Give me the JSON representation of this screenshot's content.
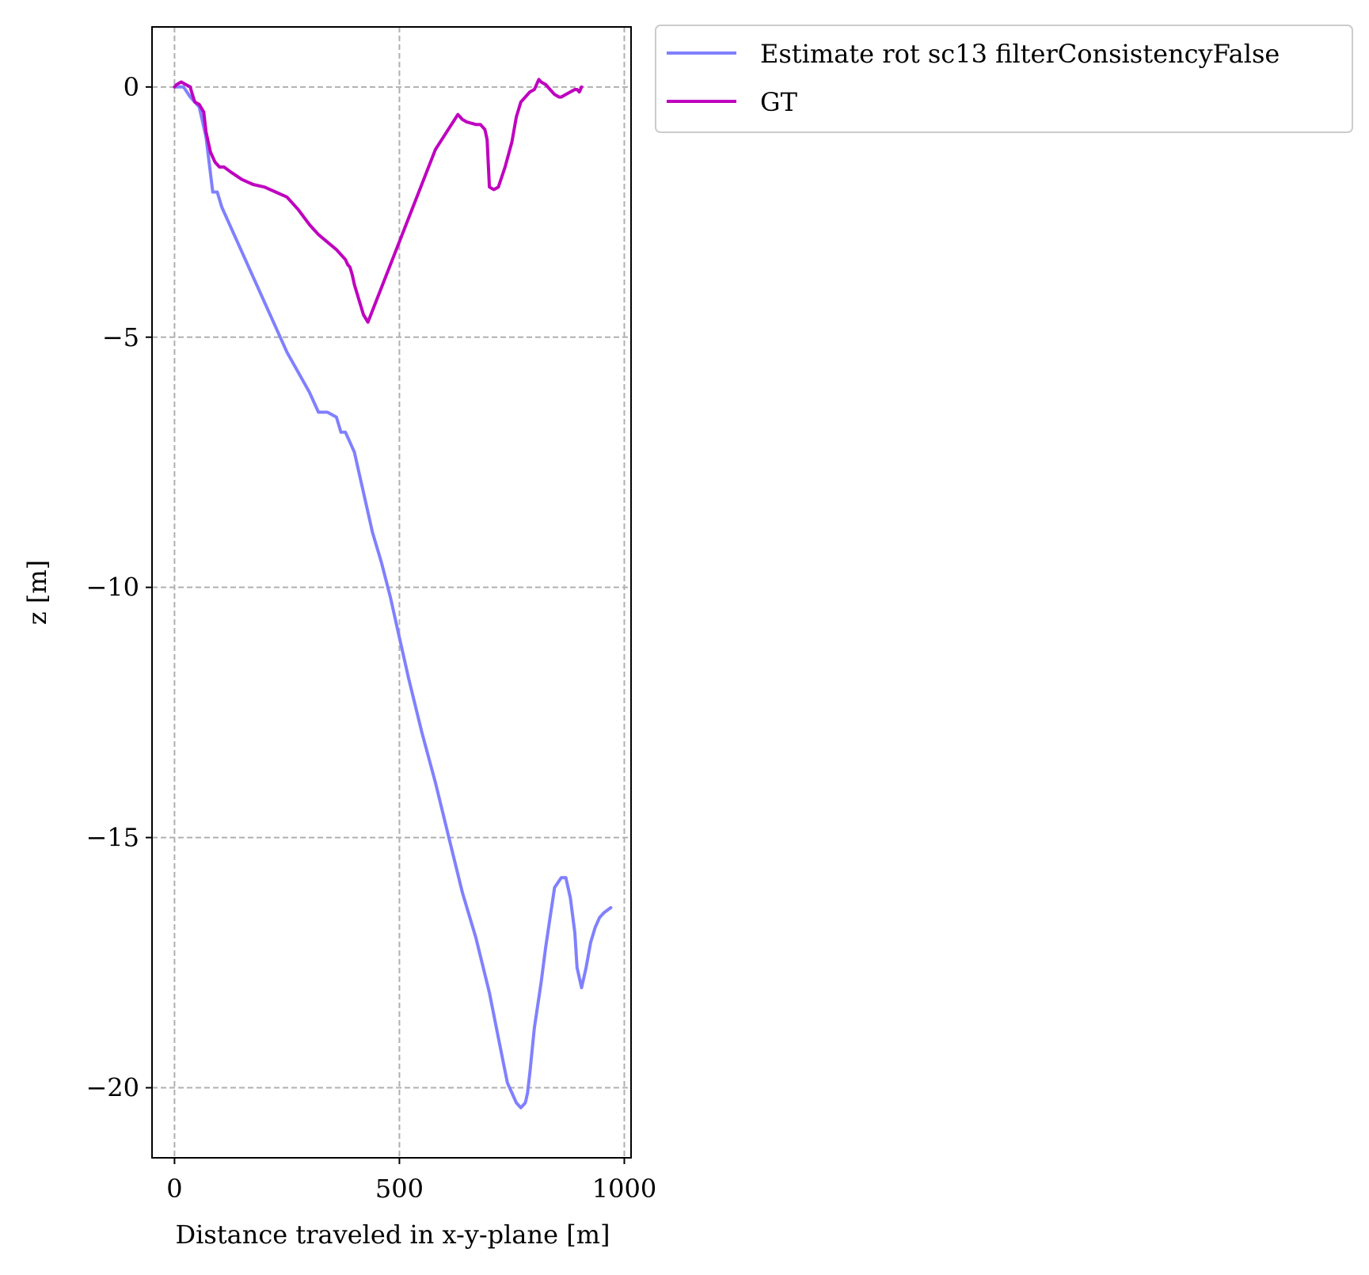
{
  "chart_data": {
    "type": "line",
    "xlabel": "Distance traveled in x-y-plane [m]",
    "ylabel": "z [m]",
    "xlim": [
      -50,
      1015
    ],
    "ylim": [
      -21.4,
      1.2
    ],
    "xticks": [
      0,
      500,
      1000
    ],
    "xtick_labels": [
      "0",
      "500",
      "1000"
    ],
    "yticks": [
      0,
      -5,
      -10,
      -15,
      -20
    ],
    "ytick_labels": [
      "0",
      "−5",
      "−10",
      "−15",
      "−20"
    ],
    "grid": true,
    "legend_position": "outside top-right",
    "series": [
      {
        "name": "Estimate rot sc13 filterConsistencyFalse",
        "color": "#8080ff",
        "x": [
          0,
          20,
          35,
          55,
          70,
          85,
          95,
          105,
          125,
          150,
          175,
          200,
          225,
          250,
          275,
          300,
          320,
          340,
          360,
          370,
          380,
          390,
          400,
          410,
          420,
          440,
          460,
          480,
          500,
          520,
          550,
          580,
          610,
          640,
          670,
          700,
          720,
          740,
          760,
          770,
          780,
          785,
          790,
          800,
          815,
          825,
          835,
          845,
          860,
          870,
          880,
          890,
          895,
          905,
          915,
          925,
          935,
          945,
          955,
          970
        ],
        "y": [
          0,
          0,
          -0.2,
          -0.4,
          -1.0,
          -2.1,
          -2.1,
          -2.4,
          -2.8,
          -3.3,
          -3.8,
          -4.3,
          -4.8,
          -5.3,
          -5.7,
          -6.1,
          -6.5,
          -6.5,
          -6.6,
          -6.9,
          -6.9,
          -7.1,
          -7.3,
          -7.7,
          -8.1,
          -8.9,
          -9.5,
          -10.2,
          -11.0,
          -11.8,
          -12.9,
          -13.9,
          -15.0,
          -16.1,
          -17.0,
          -18.1,
          -19.0,
          -19.9,
          -20.3,
          -20.4,
          -20.3,
          -20.1,
          -19.7,
          -18.8,
          -17.9,
          -17.2,
          -16.6,
          -16.0,
          -15.8,
          -15.8,
          -16.2,
          -16.9,
          -17.6,
          -18.0,
          -17.6,
          -17.1,
          -16.8,
          -16.6,
          -16.5,
          -16.4
        ],
        "y_note": ""
      },
      {
        "name": "GT",
        "color": "#bf00bf",
        "x": [
          0,
          5,
          15,
          25,
          35,
          38,
          45,
          55,
          65,
          70,
          80,
          90,
          100,
          110,
          125,
          150,
          175,
          200,
          225,
          250,
          275,
          300,
          320,
          340,
          360,
          370,
          380,
          385,
          390,
          395,
          400,
          410,
          420,
          430,
          480,
          530,
          580,
          630,
          640,
          650,
          670,
          680,
          690,
          695,
          700,
          710,
          720,
          735,
          750,
          760,
          770,
          780,
          790,
          800,
          810,
          815,
          825,
          835,
          845,
          855,
          860,
          870,
          880,
          890,
          895,
          900,
          905
        ],
        "y": [
          0,
          0.05,
          0.1,
          0.05,
          0,
          -0.1,
          -0.3,
          -0.35,
          -0.5,
          -0.9,
          -1.3,
          -1.5,
          -1.6,
          -1.6,
          -1.7,
          -1.85,
          -1.95,
          -2.0,
          -2.1,
          -2.2,
          -2.45,
          -2.75,
          -2.95,
          -3.1,
          -3.25,
          -3.35,
          -3.45,
          -3.55,
          -3.6,
          -3.75,
          -3.95,
          -4.25,
          -4.55,
          -4.7,
          -3.55,
          -2.4,
          -1.25,
          -0.55,
          -0.65,
          -0.7,
          -0.75,
          -0.75,
          -0.85,
          -1.05,
          -2.0,
          -2.05,
          -2.0,
          -1.6,
          -1.1,
          -0.6,
          -0.3,
          -0.2,
          -0.1,
          -0.05,
          0.15,
          0.1,
          0.05,
          -0.05,
          -0.15,
          -0.2,
          -0.2,
          -0.15,
          -0.1,
          -0.05,
          -0.05,
          -0.1,
          0.0
        ],
        "y_note": ""
      }
    ]
  }
}
